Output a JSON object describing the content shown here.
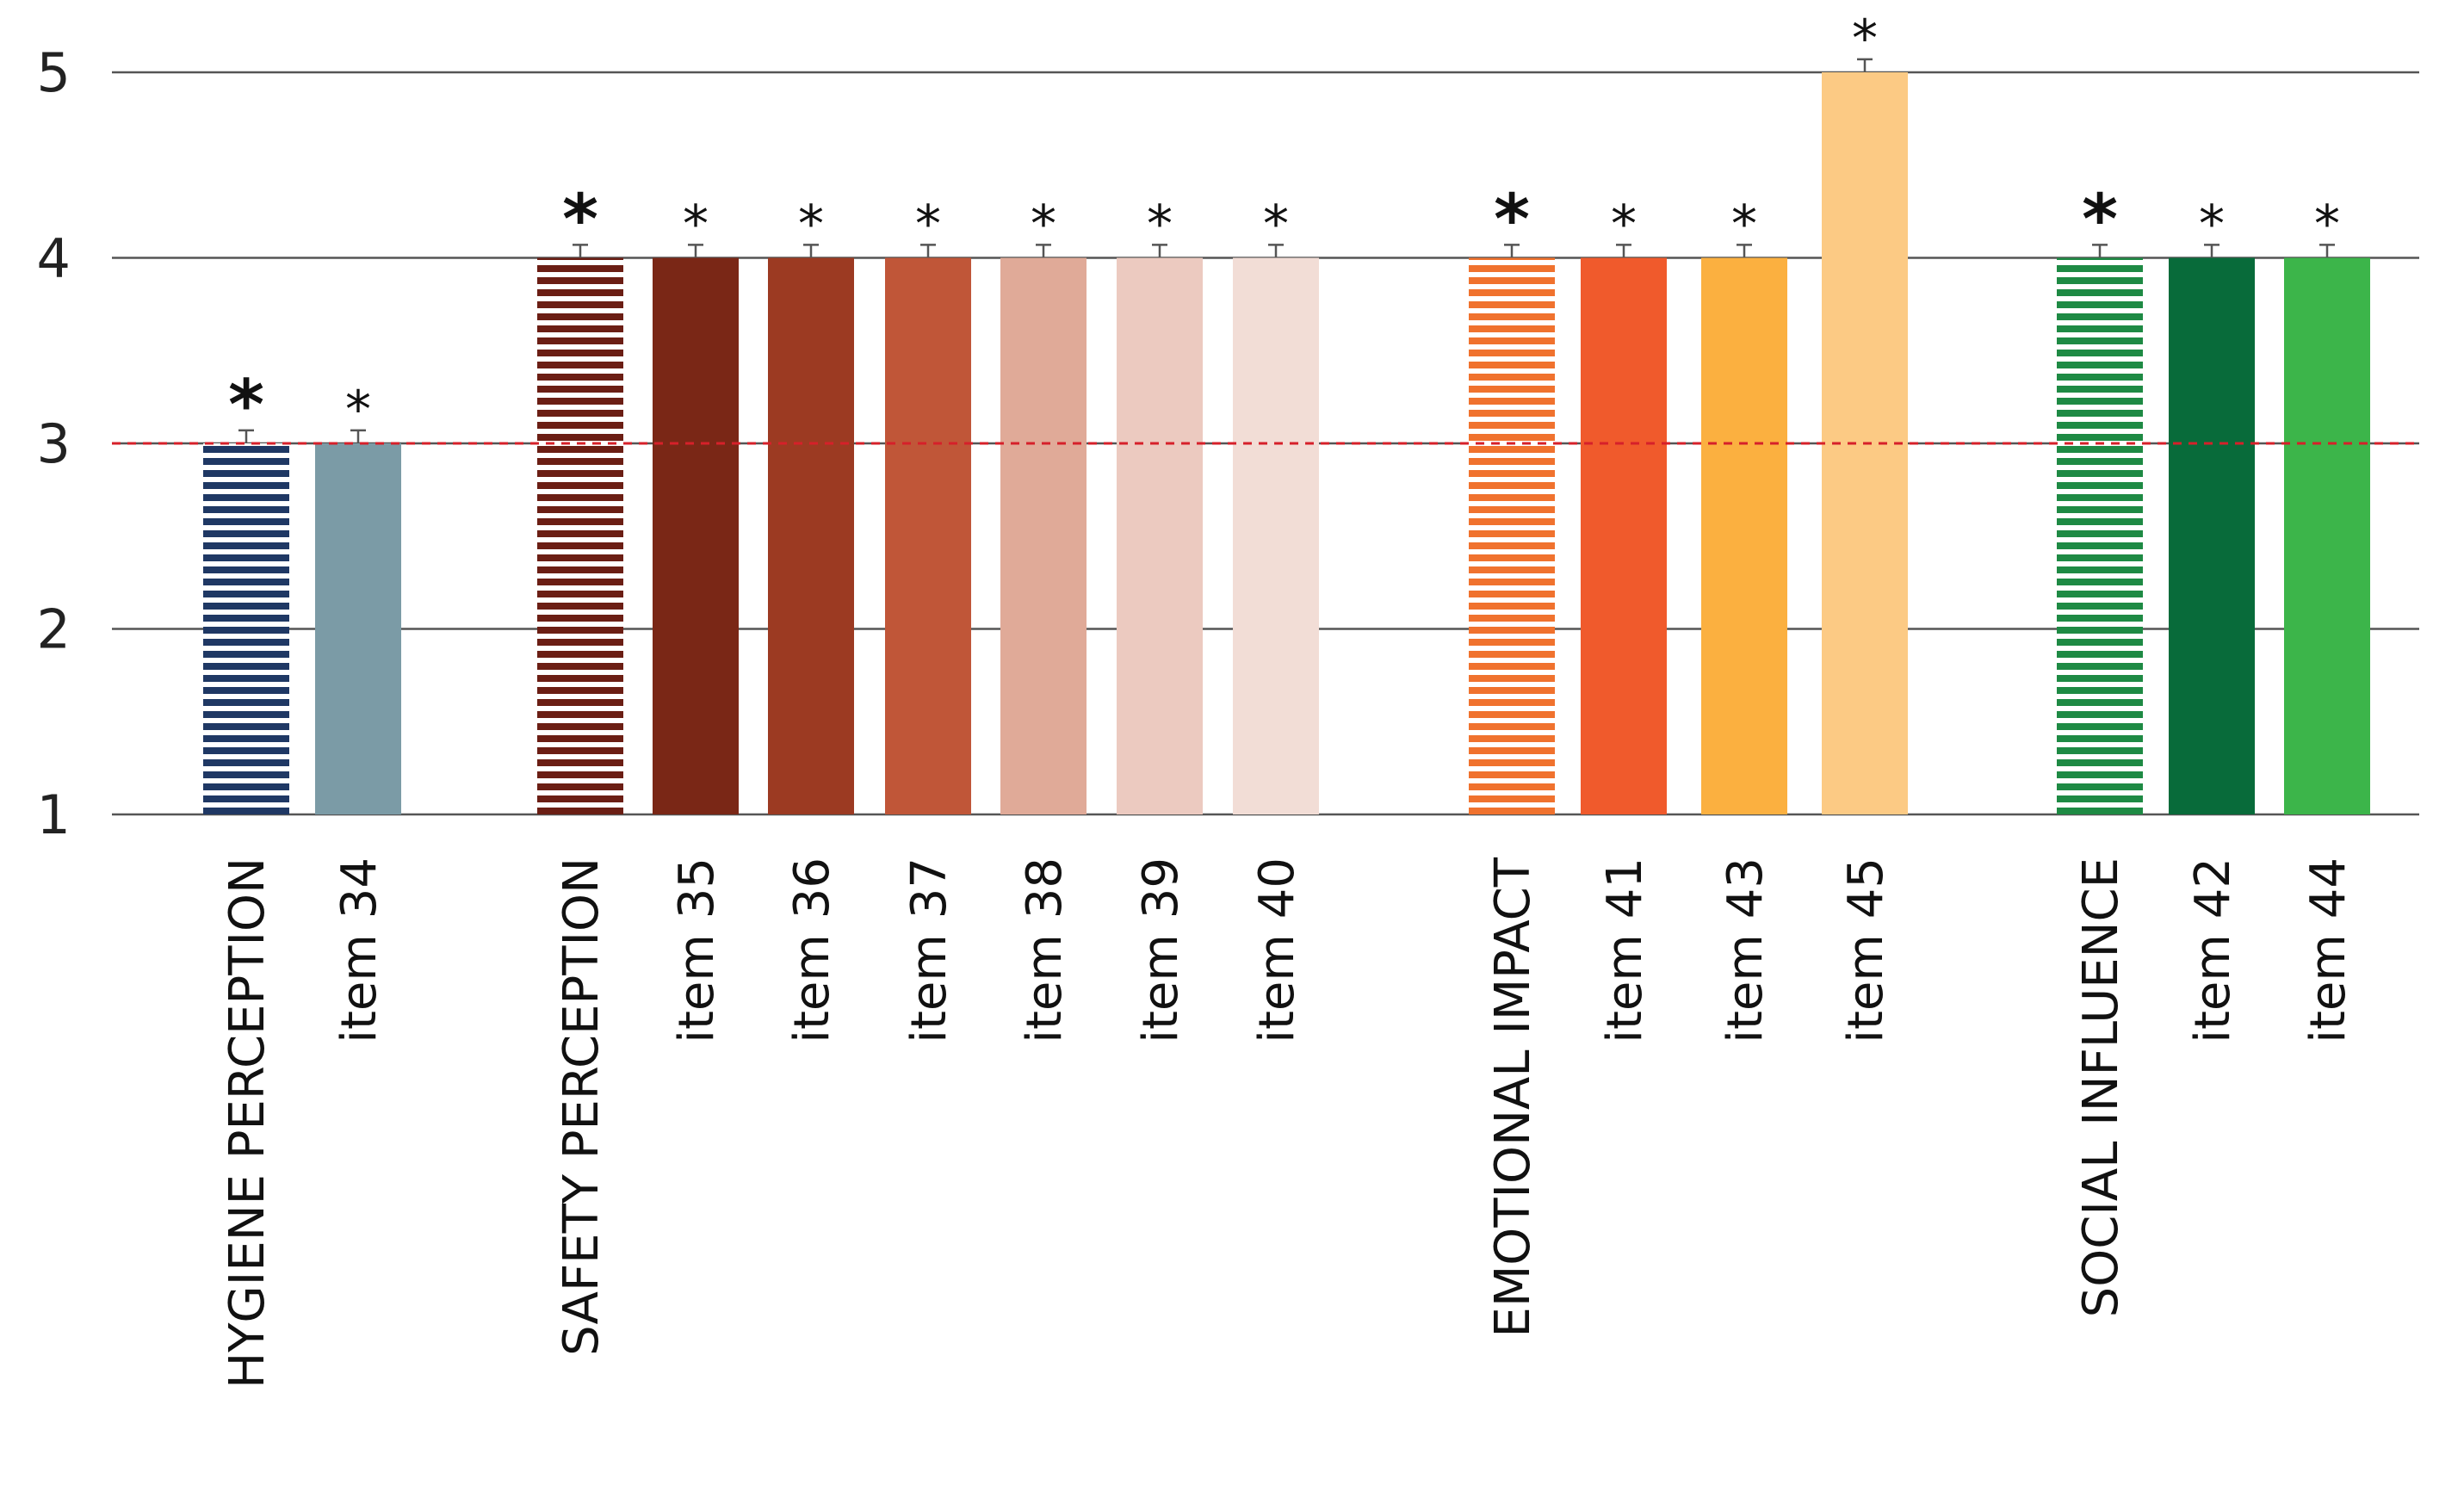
{
  "chart_data": {
    "type": "bar",
    "title": "",
    "xlabel": "",
    "ylabel": "",
    "ylim": [
      1,
      5
    ],
    "yticks": [
      1,
      2,
      3,
      4,
      5
    ],
    "grid": true,
    "reference_line": {
      "value": 3,
      "color": "#d6202a",
      "style": "dashed"
    },
    "categories": [
      "HYGIENE PERCEPTION",
      "item 34",
      "SAFETY PERCEPTION",
      "item 35",
      "item 36",
      "item 37",
      "item 38",
      "item 39",
      "item 40",
      "EMOTIONAL IMPACT",
      "item 41",
      "item 43",
      "item 45",
      "SOCIAL INFLUENCE",
      "item 42",
      "item 44"
    ],
    "values": [
      3.0,
      3.0,
      4.0,
      4.0,
      4.0,
      4.0,
      4.0,
      4.0,
      4.0,
      4.0,
      4.0,
      4.0,
      5.0,
      4.0,
      4.0,
      4.0
    ],
    "error": [
      0.07,
      0.07,
      0.07,
      0.07,
      0.07,
      0.07,
      0.07,
      0.07,
      0.07,
      0.07,
      0.07,
      0.07,
      0.07,
      0.07,
      0.07,
      0.07
    ],
    "significance": [
      "*",
      "*",
      "*",
      "*",
      "*",
      "*",
      "*",
      "*",
      "*",
      "*",
      "*",
      "*",
      "*",
      "*",
      "*",
      "*"
    ],
    "is_group": [
      true,
      false,
      true,
      false,
      false,
      false,
      false,
      false,
      false,
      true,
      false,
      false,
      false,
      true,
      false,
      false
    ],
    "colors": [
      "#1f3864",
      "#7b9ba6",
      "#6b1e14",
      "#7a2716",
      "#9c3a22",
      "#c05638",
      "#e0aa98",
      "#eccac0",
      "#f2ddd6",
      "#f0722e",
      "#f05a2c",
      "#fbb040",
      "#fcca84",
      "#1e8a44",
      "#086b3a",
      "#3cb54a"
    ]
  }
}
